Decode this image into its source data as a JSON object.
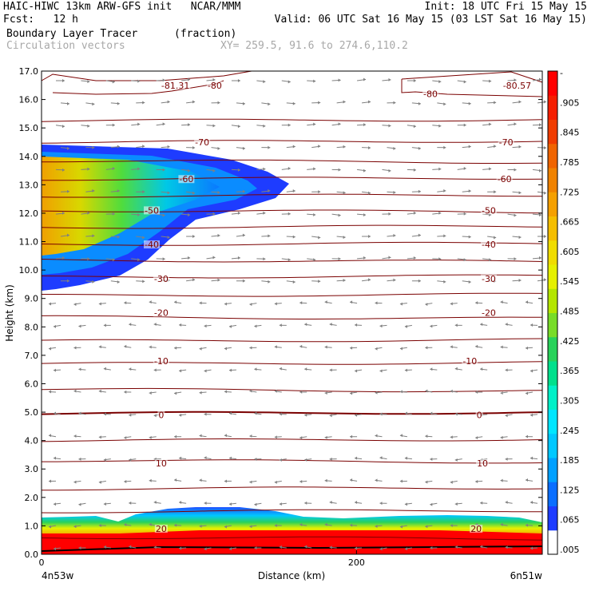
{
  "header": {
    "title_left": "HAIC-HIWC 13km ARW-GFS init   NCAR/MMM",
    "init": "Init: 18 UTC Fri 15 May 15",
    "fcst": "Fcst:   12 h",
    "valid": "Valid: 06 UTC Sat 16 May 15 (03 LST Sat 16 May 15)",
    "field": "Boundary Layer Tracer",
    "field_units": "(fraction)",
    "vectors": "Circulation vectors",
    "xy": "XY= 259.5, 91.6 to 274.6,110.2"
  },
  "colors": {
    "contour": "#7a0000",
    "vector": "#808080",
    "colorbar": [
      "#ffffff",
      "#1e3cff",
      "#0a6eff",
      "#00a0ff",
      "#00c8ff",
      "#00e6ff",
      "#00f0c8",
      "#00e08c",
      "#28d25a",
      "#78dc28",
      "#b4e600",
      "#e6f000",
      "#f0dc00",
      "#f5be00",
      "#f5a000",
      "#f08200",
      "#f06400",
      "#f03c00",
      "#f51e00",
      "#ff0000"
    ]
  },
  "chart_data": {
    "type": "heatmap",
    "title": "Boundary Layer Tracer",
    "units": "(fraction)",
    "xlabel": "Distance (km)",
    "ylabel": "Height (km)",
    "xlim": [
      0,
      318
    ],
    "ylim": [
      0.0,
      17.0
    ],
    "x_ticks": [
      {
        "value": 0,
        "label": "0"
      },
      {
        "value": 200,
        "label": "200"
      }
    ],
    "x_end_labels": {
      "left": "4n53w",
      "right": "6n51w"
    },
    "y_ticks": [
      "0.0",
      "1.0",
      "2.0",
      "3.0",
      "4.0",
      "5.0",
      "6.0",
      "7.0",
      "8.0",
      "9.0",
      "10.0",
      "11.0",
      "12.0",
      "13.0",
      "14.0",
      "15.0",
      "16.0",
      "17.0"
    ],
    "colorbar_labels": [
      ".005",
      ".065",
      ".125",
      ".185",
      ".245",
      ".305",
      ".365",
      ".425",
      ".485",
      ".545",
      ".605",
      ".665",
      ".725",
      ".785",
      ".845",
      ".905",
      "-"
    ],
    "contour_field": "temperature (C)",
    "contour_labels": [
      {
        "text": "-81.31",
        "x": 85,
        "y": 16.5
      },
      {
        "text": "-80",
        "x": 110,
        "y": 16.5
      },
      {
        "text": "-80",
        "x": 247,
        "y": 16.2
      },
      {
        "text": "-80.57",
        "x": 302,
        "y": 16.5
      },
      {
        "text": "-70",
        "x": 102,
        "y": 14.5
      },
      {
        "text": "-70",
        "x": 295,
        "y": 14.5
      },
      {
        "text": "-60",
        "x": 92,
        "y": 13.2
      },
      {
        "text": "-60",
        "x": 294,
        "y": 13.2
      },
      {
        "text": "-50",
        "x": 70,
        "y": 12.1
      },
      {
        "text": "-50",
        "x": 284,
        "y": 12.1
      },
      {
        "text": "-40",
        "x": 70,
        "y": 10.9
      },
      {
        "text": "-40",
        "x": 284,
        "y": 10.9
      },
      {
        "text": "-30",
        "x": 76,
        "y": 9.7
      },
      {
        "text": "-30",
        "x": 284,
        "y": 9.7
      },
      {
        "text": "-20",
        "x": 76,
        "y": 8.5
      },
      {
        "text": "-20",
        "x": 284,
        "y": 8.5
      },
      {
        "text": "-10",
        "x": 76,
        "y": 6.8
      },
      {
        "text": "-10",
        "x": 272,
        "y": 6.8
      },
      {
        "text": "0",
        "x": 76,
        "y": 4.9
      },
      {
        "text": "0",
        "x": 278,
        "y": 4.9
      },
      {
        "text": "10",
        "x": 76,
        "y": 3.2
      },
      {
        "text": "10",
        "x": 280,
        "y": 3.2
      },
      {
        "text": "20",
        "x": 76,
        "y": 0.9
      },
      {
        "text": "20",
        "x": 276,
        "y": 0.9
      }
    ],
    "isotherm_heights_km": [
      0.6,
      1.5,
      2.3,
      3.3,
      4.0,
      4.95,
      5.8,
      6.7,
      7.5,
      8.35,
      9.1,
      9.75,
      10.35,
      10.9,
      11.5,
      12.1,
      12.6,
      13.2,
      13.85,
      14.5,
      15.25
    ]
  }
}
